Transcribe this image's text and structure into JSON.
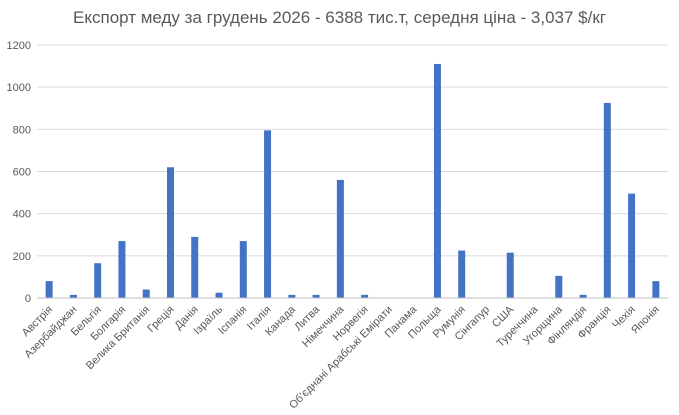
{
  "chart_data": {
    "type": "bar",
    "title": "Експорт меду за грудень 2026 - 6388 тис.т, середня ціна - 3,037 $/кг",
    "xlabel": "",
    "ylabel": "",
    "ylim": [
      0,
      1200
    ],
    "yticks": [
      0,
      200,
      400,
      600,
      800,
      1000,
      1200
    ],
    "grid": true,
    "legend": "none",
    "bar_color": "#4472C4",
    "categories": [
      "Австрія",
      "Азербайджан",
      "Бельгія",
      "Болгарія",
      "Велика Британія",
      "Греція",
      "Данія",
      "Ізраїль",
      "Іспанія",
      "Італія",
      "Канада",
      "Литва",
      "Німеччина",
      "Норвегія",
      "Об'єднані Арабські Емірати",
      "Панама",
      "Польща",
      "Румунія",
      "Сінгапур",
      "США",
      "Туреччина",
      "Угорщина",
      "Фінляндія",
      "Франція",
      "Чехія",
      "Японія"
    ],
    "values": [
      80,
      15,
      165,
      270,
      40,
      620,
      290,
      25,
      270,
      795,
      15,
      15,
      560,
      15,
      0,
      0,
      1110,
      225,
      0,
      215,
      0,
      105,
      15,
      925,
      495,
      80
    ]
  }
}
